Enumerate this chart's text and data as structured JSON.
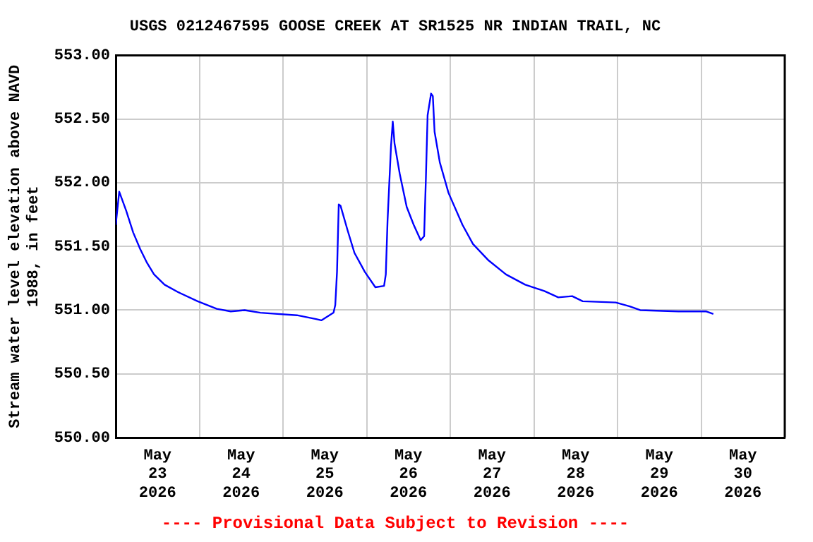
{
  "chart_data": {
    "type": "line",
    "title": "USGS 0212467595 GOOSE CREEK AT SR1525 NR INDIAN TRAIL, NC",
    "ylabel": "Stream water level elevation above NAVD\n1988, in feet",
    "annotations": [
      "---- Provisional Data Subject to Revision ----"
    ],
    "x": [
      "2026-05-23T00:00",
      "2026-05-23T01:00",
      "2026-05-23T03:00",
      "2026-05-23T05:00",
      "2026-05-23T07:00",
      "2026-05-23T09:00",
      "2026-05-23T11:00",
      "2026-05-23T14:00",
      "2026-05-23T18:00",
      "2026-05-23T23:30",
      "2026-05-24T05:00",
      "2026-05-24T09:00",
      "2026-05-24T13:00",
      "2026-05-24T17:30",
      "2026-05-25T04:00",
      "2026-05-25T09:30",
      "2026-05-25T11:00",
      "2026-05-25T14:30",
      "2026-05-25T15:00",
      "2026-05-25T15:30",
      "2026-05-25T16:00",
      "2026-05-25T16:30",
      "2026-05-25T18:30",
      "2026-05-25T20:30",
      "2026-05-25T23:30",
      "2026-05-26T02:30",
      "2026-05-26T05:00",
      "2026-05-26T05:30",
      "2026-05-26T06:00",
      "2026-05-26T07:00",
      "2026-05-26T07:30",
      "2026-05-26T08:00",
      "2026-05-26T09:30",
      "2026-05-26T11:30",
      "2026-05-26T13:30",
      "2026-05-26T15:30",
      "2026-05-26T16:30",
      "2026-05-26T17:00",
      "2026-05-26T17:30",
      "2026-05-26T18:30",
      "2026-05-26T19:00",
      "2026-05-26T19:30",
      "2026-05-26T21:00",
      "2026-05-26T23:30",
      "2026-05-27T03:30",
      "2026-05-27T06:30",
      "2026-05-27T11:00",
      "2026-05-27T16:00",
      "2026-05-27T21:30",
      "2026-05-28T03:00",
      "2026-05-28T07:00",
      "2026-05-28T11:00",
      "2026-05-28T14:00",
      "2026-05-28T23:30",
      "2026-05-29T03:30",
      "2026-05-29T06:30",
      "2026-05-29T17:30",
      "2026-05-30T01:30",
      "2026-05-30T03:30"
    ],
    "series": [
      {
        "color": "#0000ff",
        "values": [
          551.67,
          551.93,
          551.78,
          551.61,
          551.48,
          551.37,
          551.28,
          551.2,
          551.14,
          551.07,
          551.01,
          550.99,
          551.0,
          550.98,
          550.96,
          550.93,
          550.92,
          550.98,
          551.04,
          551.3,
          551.83,
          551.82,
          551.63,
          551.45,
          551.3,
          551.18,
          551.19,
          551.28,
          551.7,
          552.29,
          552.48,
          552.31,
          552.07,
          551.81,
          551.67,
          551.55,
          551.58,
          552.03,
          552.53,
          552.7,
          552.68,
          552.4,
          552.16,
          551.92,
          551.67,
          551.52,
          551.39,
          551.28,
          551.2,
          551.15,
          551.1,
          551.11,
          551.07,
          551.06,
          551.03,
          551.0,
          550.99,
          550.99,
          550.97
        ]
      }
    ],
    "xlim": [
      "2026-05-23T00:00",
      "2026-05-31T00:00"
    ],
    "xticks": [
      {
        "value": "2026-05-23T12:00",
        "label": "May\n23\n2026"
      },
      {
        "value": "2026-05-24T00:00",
        "label": null
      },
      {
        "value": "2026-05-24T12:00",
        "label": "May\n24\n2026"
      },
      {
        "value": "2026-05-25T00:00",
        "label": null
      },
      {
        "value": "2026-05-25T12:00",
        "label": "May\n25\n2026"
      },
      {
        "value": "2026-05-26T00:00",
        "label": null
      },
      {
        "value": "2026-05-26T12:00",
        "label": "May\n26\n2026"
      },
      {
        "value": "2026-05-27T00:00",
        "label": null
      },
      {
        "value": "2026-05-27T12:00",
        "label": "May\n27\n2026"
      },
      {
        "value": "2026-05-28T00:00",
        "label": null
      },
      {
        "value": "2026-05-28T12:00",
        "label": "May\n28\n2026"
      },
      {
        "value": "2026-05-29T00:00",
        "label": null
      },
      {
        "value": "2026-05-29T12:00",
        "label": "May\n29\n2026"
      },
      {
        "value": "2026-05-30T00:00",
        "label": null
      },
      {
        "value": "2026-05-30T12:00",
        "label": "May\n30\n2026"
      }
    ],
    "ylim": [
      550,
      553
    ],
    "yticks": [
      {
        "value": 550,
        "label": "550.00"
      },
      {
        "value": 550.5,
        "label": "550.50"
      },
      {
        "value": 551,
        "label": "551.00"
      },
      {
        "value": 551.5,
        "label": "551.50"
      },
      {
        "value": 552,
        "label": "552.00"
      },
      {
        "value": 552.5,
        "label": "552.50"
      },
      {
        "value": 553,
        "label": "553.00"
      }
    ],
    "grid": true,
    "legend": false
  }
}
